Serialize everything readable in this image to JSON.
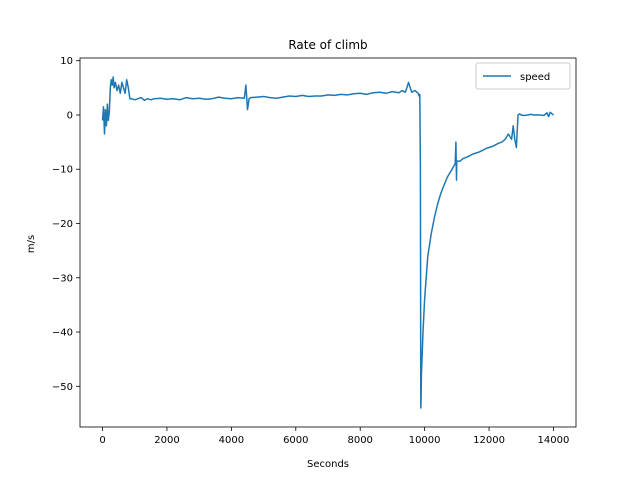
{
  "chart_data": {
    "type": "line",
    "title": "Rate of climb",
    "xlabel": "Seconds",
    "ylabel": "m/s",
    "xlim": [
      -700,
      14700
    ],
    "ylim": [
      -57.5,
      10.5
    ],
    "xticks": [
      0,
      2000,
      4000,
      6000,
      8000,
      10000,
      12000,
      14000
    ],
    "yticks": [
      10,
      0,
      -10,
      -20,
      -30,
      -40,
      -50
    ],
    "xtick_labels": [
      "0",
      "2000",
      "4000",
      "6000",
      "8000",
      "10000",
      "12000",
      "14000"
    ],
    "ytick_labels": [
      "10",
      "0",
      "−10",
      "−20",
      "−30",
      "−40",
      "−50"
    ],
    "legend_position": "top-right",
    "grid": false,
    "series": [
      {
        "name": "speed",
        "color": "#1f77b4",
        "x": [
          0,
          30,
          60,
          90,
          120,
          150,
          180,
          210,
          240,
          270,
          300,
          330,
          360,
          400,
          450,
          500,
          550,
          600,
          650,
          700,
          750,
          800,
          850,
          900,
          1000,
          1100,
          1200,
          1300,
          1400,
          1500,
          1600,
          1800,
          2000,
          2200,
          2400,
          2600,
          2800,
          3000,
          3200,
          3400,
          3600,
          3800,
          4000,
          4200,
          4400,
          4450,
          4500,
          4550,
          4600,
          4800,
          5000,
          5200,
          5400,
          5600,
          5800,
          6000,
          6200,
          6400,
          6600,
          6800,
          7000,
          7200,
          7400,
          7600,
          7800,
          8000,
          8200,
          8400,
          8600,
          8800,
          9000,
          9200,
          9300,
          9400,
          9450,
          9500,
          9600,
          9700,
          9800,
          9830,
          9850,
          9870,
          9880,
          9890,
          9900,
          9920,
          9950,
          10000,
          10050,
          10100,
          10150,
          10200,
          10300,
          10400,
          10500,
          10600,
          10700,
          10800,
          10900,
          10950,
          10970,
          10990,
          11000,
          11100,
          11200,
          11300,
          11400,
          11500,
          11600,
          11700,
          11800,
          11900,
          12000,
          12100,
          12200,
          12300,
          12400,
          12500,
          12600,
          12700,
          12750,
          12800,
          12850,
          12900,
          12950,
          13000,
          13100,
          13200,
          13300,
          13400,
          13500,
          13600,
          13700,
          13800,
          13850,
          13900,
          14000
        ],
        "y": [
          -1,
          1.5,
          -3.5,
          1,
          -2,
          2,
          -1,
          0.5,
          5,
          6.5,
          5.5,
          7,
          5,
          6,
          4.5,
          5.5,
          4,
          6,
          5,
          4,
          6.5,
          5,
          3,
          3,
          2.8,
          3,
          3.2,
          2.7,
          3,
          2.8,
          3,
          3.1,
          2.9,
          3,
          2.8,
          3.2,
          3,
          3.1,
          2.9,
          3,
          3.3,
          3.1,
          3,
          3.2,
          3.1,
          5.5,
          1,
          3,
          3.2,
          3.3,
          3.4,
          3.2,
          3.1,
          3.3,
          3.5,
          3.4,
          3.6,
          3.4,
          3.5,
          3.5,
          3.7,
          3.6,
          3.8,
          3.7,
          3.9,
          4,
          3.8,
          4.1,
          4.2,
          4,
          4.3,
          4.1,
          4.5,
          4.2,
          5,
          6,
          4.2,
          4.5,
          4,
          3.5,
          3.8,
          -10,
          -54,
          -52,
          -48,
          -45,
          -40,
          -34,
          -30,
          -26,
          -24,
          -22,
          -19,
          -16.5,
          -14.5,
          -13,
          -11.5,
          -10.5,
          -9.5,
          -9,
          -5,
          -12,
          -8.5,
          -8.5,
          -8,
          -7.8,
          -7.5,
          -7.2,
          -7,
          -6.8,
          -6.5,
          -6.2,
          -6,
          -5.8,
          -5.5,
          -5.2,
          -5,
          -4.5,
          -3.5,
          -4.5,
          -2,
          -4.5,
          -6,
          0,
          0.2,
          0,
          -0.1,
          0,
          0.1,
          0,
          0,
          0,
          -0.1,
          0.4,
          -0.3,
          0.5,
          0
        ]
      }
    ]
  }
}
